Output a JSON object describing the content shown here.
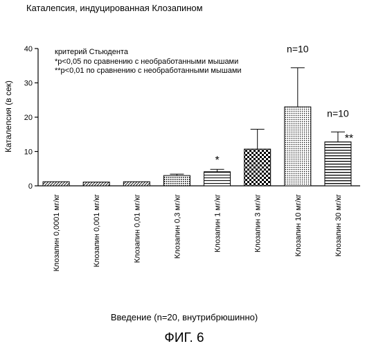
{
  "chart_data": {
    "type": "bar",
    "title": "Каталепсия, индуцированная Клозапином",
    "ylabel": "Каталепсия (в сек)",
    "xlabel": "Введение (n=20, внутрибрюшинно)",
    "ylim": [
      0,
      40
    ],
    "yticks": [
      0,
      10,
      20,
      30,
      40
    ],
    "categories": [
      "Клозапин 0,0001 мг/кг",
      "Клозапин 0,001 мг/кг",
      "Клозапин 0,01 мг/кг",
      "Клозапин 0,3 мг/кг",
      "Клозапин 1 мг/кг",
      "Клозапин 3 мг/кг",
      "Клозапин 10 мг/кг",
      "Клозапин 30 мг/кг"
    ],
    "values": [
      1.2,
      1.1,
      1.2,
      3.0,
      4.1,
      10.7,
      23.0,
      12.8
    ],
    "errors": [
      0,
      0,
      0,
      0.4,
      0.7,
      5.8,
      11.4,
      2.9
    ],
    "patterns": [
      "diag",
      "diag",
      "diag",
      "dots",
      "hlines-sparse",
      "checker",
      "dense-dots",
      "hlines"
    ],
    "bar_annotations": [
      {
        "index": 4,
        "text": "*"
      },
      {
        "index": 6,
        "text": "n=10"
      },
      {
        "index": 7,
        "text": "n=10"
      },
      {
        "index": 7,
        "text": "**"
      }
    ],
    "legend_notes": [
      "критерий Стьюдента",
      "*p<0,05 по сравнению с необработанными мышами",
      "**p<0,01 по сравнению с необработанными мышами"
    ],
    "grid": false,
    "figure_caption": "ФИГ. 6"
  }
}
